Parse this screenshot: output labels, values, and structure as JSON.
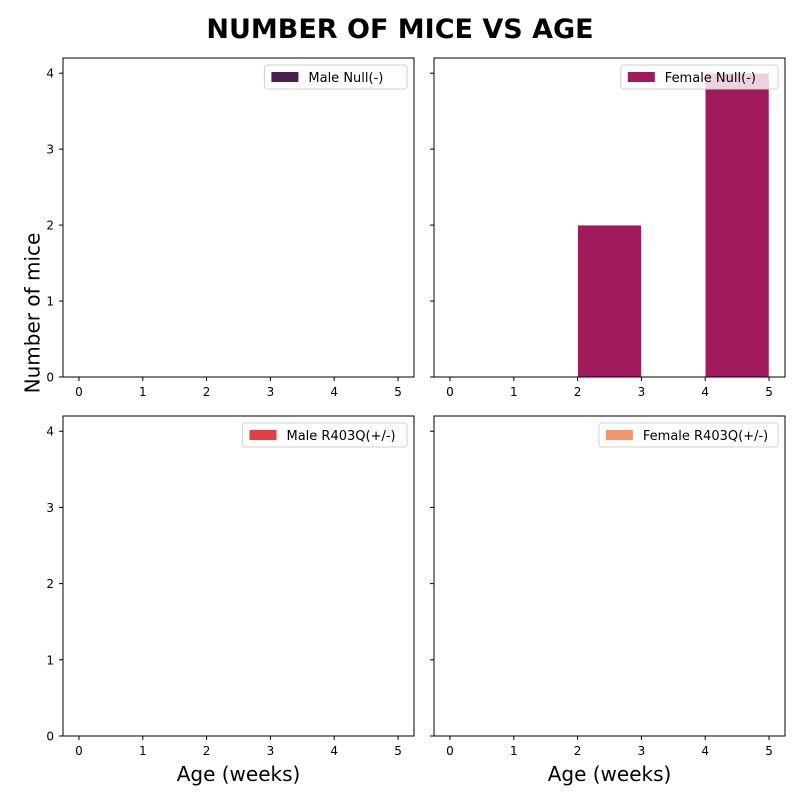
{
  "chart_data": {
    "type": "bar",
    "title": "NUMBER OF MICE VS AGE",
    "ylabel": "Number of mice",
    "xlabel": "Age (weeks)",
    "x_ticks": [
      0,
      1,
      2,
      3,
      4,
      5
    ],
    "y_ticks": [
      0,
      1,
      2,
      3,
      4
    ],
    "xlim": [
      -0.25,
      5.25
    ],
    "ylim": [
      0,
      4.2
    ],
    "bins": [
      [
        0,
        1
      ],
      [
        1,
        2
      ],
      [
        2,
        3
      ],
      [
        3,
        4
      ],
      [
        4,
        5
      ]
    ],
    "legend_position": "top-right",
    "grid": false,
    "panels": [
      {
        "series": "Male Null(-)",
        "color": "#4a1f4d",
        "values": [
          0,
          0,
          0,
          0,
          0
        ]
      },
      {
        "series": "Female Null(-)",
        "color": "#a11a5b",
        "values": [
          0,
          0,
          2,
          0,
          4
        ]
      },
      {
        "series": "Male R403Q(+/-)",
        "color": "#e13f42",
        "values": [
          0,
          0,
          0,
          0,
          0
        ]
      },
      {
        "series": "Female R403Q(+/-)",
        "color": "#f3976f",
        "values": [
          0,
          0,
          0,
          0,
          0
        ]
      }
    ]
  }
}
